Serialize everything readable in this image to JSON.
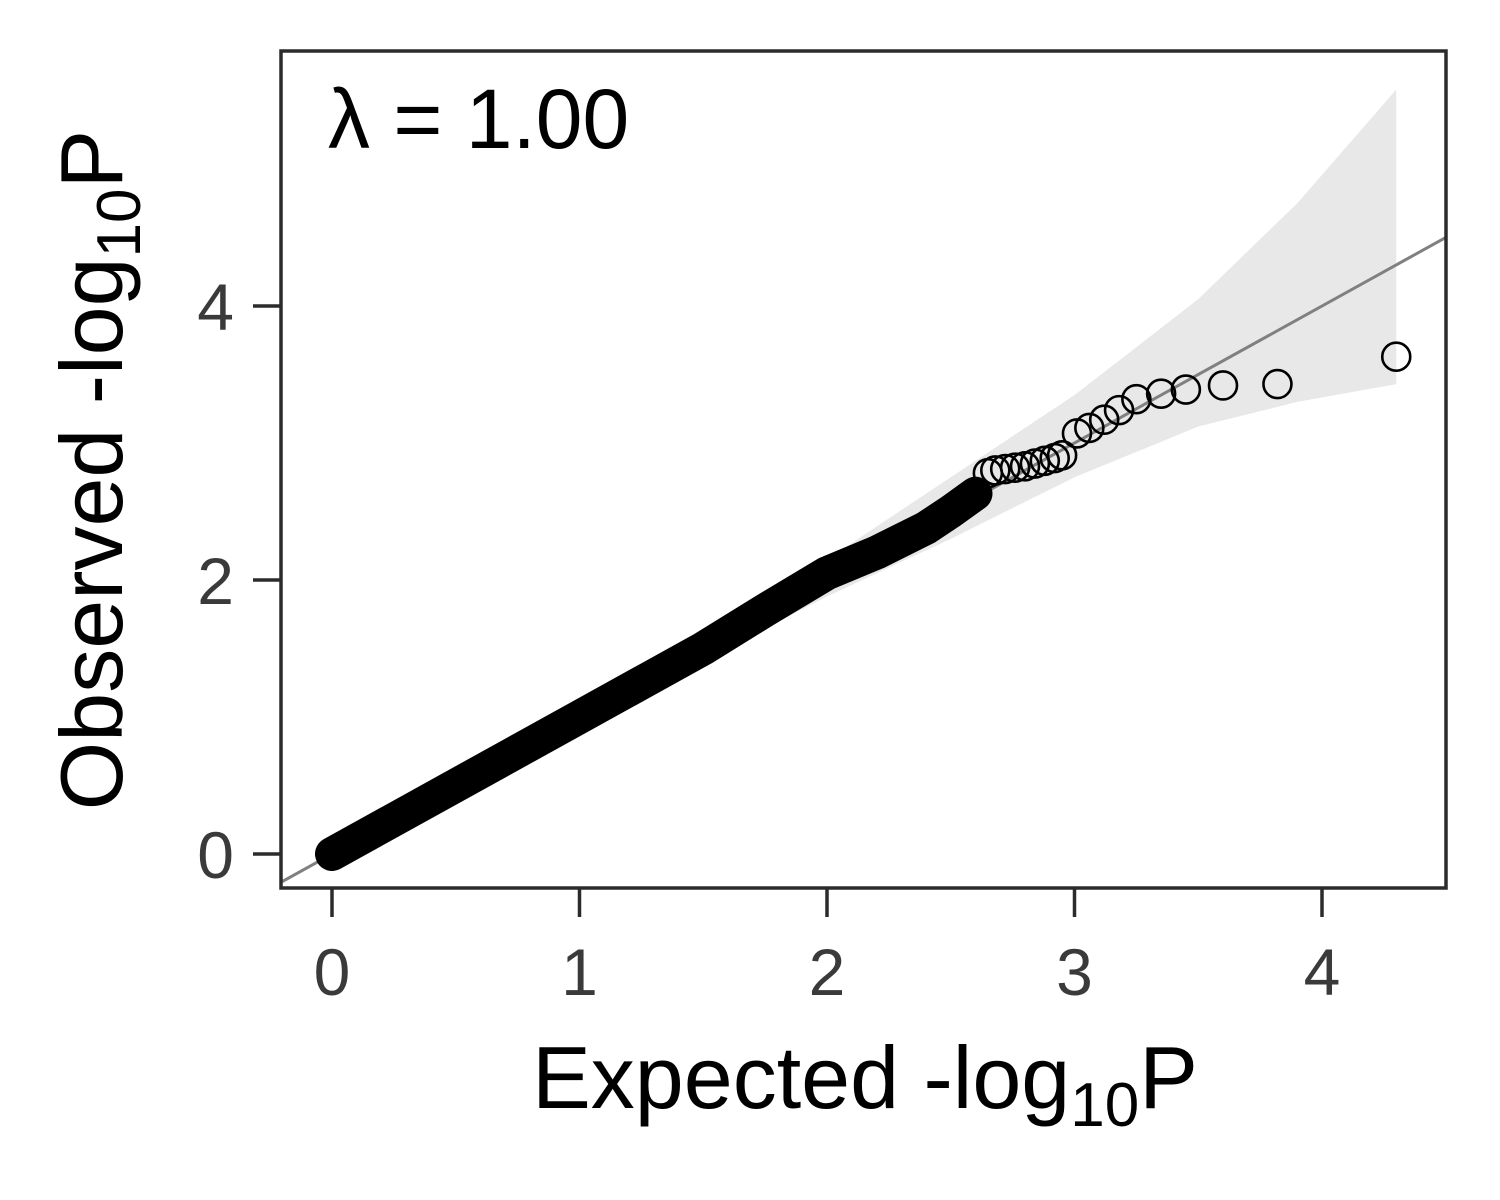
{
  "chart_data": {
    "type": "scatter",
    "title": "",
    "annotation": "λ = 1.00",
    "xlabel": "Expected -log10P",
    "ylabel": "Observed -log10P",
    "xlabel_parts": {
      "main": "Expected -log",
      "sub": "10",
      "tail": "P"
    },
    "ylabel_parts": {
      "main": "Observed -log",
      "sub": "10",
      "tail": "P"
    },
    "xlim": [
      -0.2,
      4.5
    ],
    "ylim": [
      -0.25,
      5.85
    ],
    "xticks": [
      0,
      1,
      2,
      3,
      4
    ],
    "yticks": [
      0,
      2,
      4
    ],
    "xtick_labels": [
      "0",
      "1",
      "2",
      "3",
      "4"
    ],
    "ytick_labels": [
      "0",
      "2",
      "4"
    ],
    "grid": false,
    "reference_line": {
      "slope": 1,
      "intercept": 0,
      "color": "#808080"
    },
    "confidence_band": {
      "color": "#e8e8e8",
      "x": [
        0,
        1.0,
        2.0,
        2.5,
        3.0,
        3.5,
        3.9,
        4.3
      ],
      "upper": [
        0,
        1.08,
        2.15,
        2.75,
        3.35,
        4.05,
        4.75,
        5.58
      ],
      "lower": [
        0,
        0.95,
        1.88,
        2.3,
        2.75,
        3.12,
        3.3,
        3.43
      ]
    },
    "series": [
      {
        "name": "observed",
        "marker": "open-circle",
        "bulk_x": [
          0,
          0.5,
          1.0,
          1.5,
          1.75,
          2.0,
          2.2,
          2.4,
          2.5,
          2.6
        ],
        "bulk_y": [
          0,
          0.5,
          1.0,
          1.5,
          1.78,
          2.05,
          2.2,
          2.38,
          2.5,
          2.63
        ],
        "tail_points": [
          {
            "x": 2.65,
            "y": 2.78
          },
          {
            "x": 2.68,
            "y": 2.8
          },
          {
            "x": 2.72,
            "y": 2.81
          },
          {
            "x": 2.76,
            "y": 2.82
          },
          {
            "x": 2.8,
            "y": 2.83
          },
          {
            "x": 2.84,
            "y": 2.85
          },
          {
            "x": 2.88,
            "y": 2.87
          },
          {
            "x": 2.92,
            "y": 2.89
          },
          {
            "x": 2.95,
            "y": 2.91
          },
          {
            "x": 3.01,
            "y": 3.07
          },
          {
            "x": 3.06,
            "y": 3.11
          },
          {
            "x": 3.12,
            "y": 3.17
          },
          {
            "x": 3.18,
            "y": 3.24
          },
          {
            "x": 3.25,
            "y": 3.32
          },
          {
            "x": 3.35,
            "y": 3.36
          },
          {
            "x": 3.45,
            "y": 3.39
          },
          {
            "x": 3.6,
            "y": 3.42
          },
          {
            "x": 3.82,
            "y": 3.43
          },
          {
            "x": 4.3,
            "y": 3.63
          }
        ]
      }
    ]
  }
}
